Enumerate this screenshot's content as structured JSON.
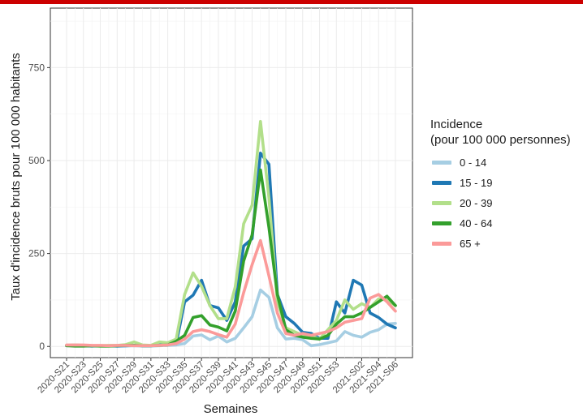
{
  "chart_data": {
    "type": "line",
    "xlabel": "Semaines",
    "ylabel": "Taux d'incidence bruts pour 100 000 habitants",
    "ylim": [
      -30,
      910
    ],
    "yticks": [
      0,
      250,
      500,
      750
    ],
    "legend": {
      "title_line1": "Incidence",
      "title_line2": "(pour 100 000 personnes)",
      "placement": "right"
    },
    "grid": true,
    "x": [
      "2020-S21",
      "2020-S22",
      "2020-S23",
      "2020-S24",
      "2020-S25",
      "2020-S26",
      "2020-S27",
      "2020-S28",
      "2020-S29",
      "2020-S30",
      "2020-S31",
      "2020-S32",
      "2020-S33",
      "2020-S34",
      "2020-S35",
      "2020-S36",
      "2020-S37",
      "2020-S38",
      "2020-S39",
      "2020-S40",
      "2020-S41",
      "2020-S42",
      "2020-S43",
      "2020-S44",
      "2020-S45",
      "2020-S46",
      "2020-S47",
      "2020-S48",
      "2020-S49",
      "2020-S50",
      "2020-S51",
      "2020-S52",
      "2020-S53",
      "2020-S54",
      "2021-S01",
      "2021-S02",
      "2021-S03",
      "2021-S04",
      "2021-S05",
      "2021-S06"
    ],
    "tick_labels": [
      "2020-S21",
      "2020-S23",
      "2020-S25",
      "2020-S27",
      "2020-S29",
      "2020-S31",
      "2020-S33",
      "2020-S35",
      "2020-S37",
      "2020-S39",
      "2020-S41",
      "2020-S43",
      "2020-S45",
      "2020-S47",
      "2020-S49",
      "2020-S51",
      "2020-S53",
      "2021-S02",
      "2021-S04",
      "2021-S06"
    ],
    "series": [
      {
        "name": "0 - 14",
        "color": "#a6cee3",
        "values": [
          3,
          4,
          3,
          2,
          2,
          1,
          2,
          1,
          2,
          1,
          1,
          2,
          3,
          4,
          8,
          28,
          31,
          18,
          28,
          12,
          22,
          50,
          80,
          152,
          132,
          50,
          20,
          22,
          18,
          2,
          5,
          10,
          15,
          40,
          30,
          25,
          38,
          45,
          60,
          62
        ]
      },
      {
        "name": "15 - 19",
        "color": "#1f78b4",
        "values": [
          2,
          3,
          2,
          1,
          2,
          2,
          1,
          2,
          3,
          2,
          2,
          4,
          6,
          8,
          120,
          138,
          178,
          110,
          104,
          70,
          120,
          270,
          290,
          520,
          490,
          140,
          80,
          62,
          38,
          35,
          22,
          22,
          120,
          90,
          178,
          165,
          90,
          78,
          60,
          50
        ]
      },
      {
        "name": "20 - 39",
        "color": "#b2df8a",
        "values": [
          3,
          4,
          3,
          2,
          2,
          3,
          3,
          5,
          12,
          4,
          3,
          12,
          10,
          20,
          140,
          198,
          162,
          110,
          75,
          75,
          160,
          330,
          380,
          605,
          400,
          120,
          50,
          40,
          30,
          28,
          20,
          45,
          70,
          125,
          100,
          115,
          105,
          128,
          125,
          110
        ]
      },
      {
        "name": "40 - 64",
        "color": "#33a02c",
        "values": [
          2,
          1,
          1,
          2,
          1,
          1,
          2,
          3,
          3,
          2,
          2,
          3,
          4,
          14,
          30,
          78,
          83,
          58,
          52,
          42,
          95,
          230,
          300,
          475,
          320,
          140,
          45,
          30,
          25,
          22,
          20,
          30,
          60,
          80,
          80,
          90,
          105,
          120,
          135,
          110
        ]
      },
      {
        "name": "65 +",
        "color": "#fb9a99",
        "values": [
          4,
          4,
          4,
          3,
          3,
          2,
          3,
          3,
          2,
          2,
          2,
          3,
          4,
          8,
          20,
          40,
          45,
          40,
          32,
          25,
          60,
          145,
          220,
          285,
          190,
          90,
          35,
          30,
          35,
          30,
          35,
          40,
          50,
          65,
          70,
          75,
          130,
          140,
          120,
          95
        ]
      }
    ]
  }
}
